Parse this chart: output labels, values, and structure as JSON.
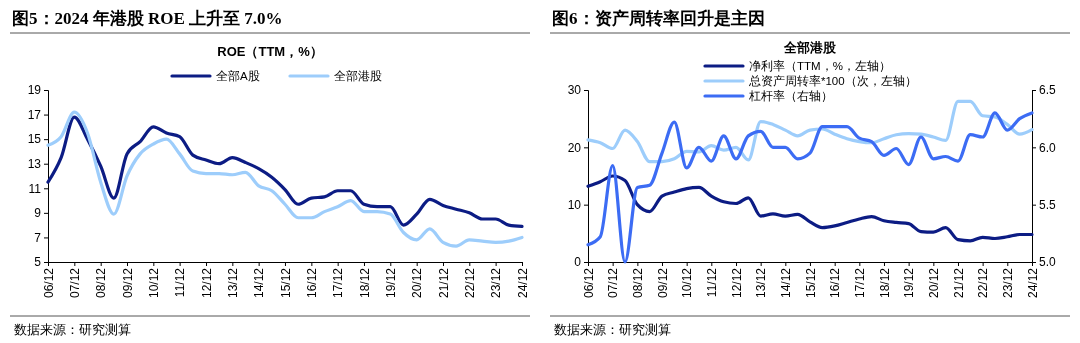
{
  "chart_data": [
    {
      "type": "line",
      "title": "图5：2024 年港股 ROE 上升至 7.0%",
      "subtitle": "ROE（TTM，%）",
      "annotations": [
        "数据来源：研究测算"
      ],
      "x": [
        "2006-12",
        "2007-06",
        "2007-12",
        "2008-06",
        "2008-12",
        "2009-06",
        "2009-12",
        "2010-06",
        "2010-12",
        "2011-06",
        "2011-12",
        "2012-06",
        "2012-12",
        "2013-06",
        "2013-12",
        "2014-06",
        "2014-12",
        "2015-06",
        "2015-12",
        "2016-06",
        "2016-12",
        "2017-06",
        "2017-12",
        "2018-06",
        "2018-12",
        "2019-06",
        "2019-12",
        "2020-06",
        "2020-12",
        "2021-06",
        "2021-12",
        "2022-06",
        "2022-12",
        "2023-06",
        "2023-12",
        "2024-06",
        "2024-12"
      ],
      "xlim": [
        "2006-12",
        "2024-12"
      ],
      "xticks": [
        {
          "value": "2006-12",
          "label": "06/12"
        },
        {
          "value": "2007-12",
          "label": "07/12"
        },
        {
          "value": "2008-12",
          "label": "08/12"
        },
        {
          "value": "2009-12",
          "label": "09/12"
        },
        {
          "value": "2010-12",
          "label": "10/12"
        },
        {
          "value": "2011-12",
          "label": "11/12"
        },
        {
          "value": "2012-12",
          "label": "12/12"
        },
        {
          "value": "2013-12",
          "label": "13/12"
        },
        {
          "value": "2014-12",
          "label": "14/12"
        },
        {
          "value": "2015-12",
          "label": "15/12"
        },
        {
          "value": "2016-12",
          "label": "16/12"
        },
        {
          "value": "2017-12",
          "label": "17/12"
        },
        {
          "value": "2018-12",
          "label": "18/12"
        },
        {
          "value": "2019-12",
          "label": "19/12"
        },
        {
          "value": "2020-12",
          "label": "20/12"
        },
        {
          "value": "2021-12",
          "label": "21/12"
        },
        {
          "value": "2022-12",
          "label": "22/12"
        },
        {
          "value": "2023-12",
          "label": "23/12"
        },
        {
          "value": "2024-12",
          "label": "24/12"
        }
      ],
      "series": [
        {
          "name": "全部A股",
          "color": "#0c1c84",
          "values": [
            11.5,
            13.5,
            16.8,
            15.0,
            12.8,
            10.2,
            13.8,
            14.8,
            16.0,
            15.5,
            15.2,
            13.7,
            13.3,
            13.0,
            13.5,
            13.1,
            12.6,
            11.9,
            10.9,
            9.7,
            10.2,
            10.3,
            10.8,
            10.8,
            9.7,
            9.5,
            9.5,
            8.0,
            8.9,
            10.1,
            9.6,
            9.3,
            9.0,
            8.5,
            8.5,
            8.0,
            7.9
          ]
        },
        {
          "name": "全部港股",
          "color": "#9dcdfb",
          "values": [
            14.5,
            15.2,
            17.2,
            15.5,
            11.5,
            8.9,
            12.0,
            13.8,
            14.6,
            15.0,
            13.8,
            12.4,
            12.2,
            12.2,
            12.1,
            12.3,
            11.2,
            10.8,
            9.7,
            8.6,
            8.6,
            9.1,
            9.5,
            10.0,
            9.1,
            9.1,
            8.9,
            7.4,
            6.8,
            7.7,
            6.6,
            6.3,
            6.8,
            6.7,
            6.6,
            6.7,
            7.0
          ]
        }
      ],
      "ylim": [
        5,
        19
      ],
      "yticks": [
        5,
        7,
        9,
        11,
        13,
        15,
        17,
        19
      ],
      "legend": "top",
      "grid": false,
      "marker": "none",
      "line_style": "solid"
    },
    {
      "type": "line",
      "title": "图6：资产周转率回升是主因",
      "subtitle": "全部港股",
      "annotations": [
        "数据来源：研究测算"
      ],
      "x": [
        "2006-12",
        "2007-06",
        "2007-12",
        "2008-06",
        "2008-12",
        "2009-06",
        "2009-12",
        "2010-06",
        "2010-12",
        "2011-06",
        "2011-12",
        "2012-06",
        "2012-12",
        "2013-06",
        "2013-12",
        "2014-06",
        "2014-12",
        "2015-06",
        "2015-12",
        "2016-06",
        "2016-12",
        "2017-06",
        "2017-12",
        "2018-06",
        "2018-12",
        "2019-06",
        "2019-12",
        "2020-06",
        "2020-12",
        "2021-06",
        "2021-12",
        "2022-06",
        "2022-12",
        "2023-06",
        "2023-12",
        "2024-06",
        "2024-12"
      ],
      "xlim": [
        "2006-12",
        "2024-12"
      ],
      "xticks": [
        {
          "value": "2006-12",
          "label": "06/12"
        },
        {
          "value": "2007-12",
          "label": "07/12"
        },
        {
          "value": "2008-12",
          "label": "08/12"
        },
        {
          "value": "2009-12",
          "label": "09/12"
        },
        {
          "value": "2010-12",
          "label": "10/12"
        },
        {
          "value": "2011-12",
          "label": "11/12"
        },
        {
          "value": "2012-12",
          "label": "12/12"
        },
        {
          "value": "2013-12",
          "label": "13/12"
        },
        {
          "value": "2014-12",
          "label": "14/12"
        },
        {
          "value": "2015-12",
          "label": "15/12"
        },
        {
          "value": "2016-12",
          "label": "16/12"
        },
        {
          "value": "2017-12",
          "label": "17/12"
        },
        {
          "value": "2018-12",
          "label": "18/12"
        },
        {
          "value": "2019-12",
          "label": "19/12"
        },
        {
          "value": "2020-12",
          "label": "20/12"
        },
        {
          "value": "2021-12",
          "label": "21/12"
        },
        {
          "value": "2022-12",
          "label": "22/12"
        },
        {
          "value": "2023-12",
          "label": "23/12"
        },
        {
          "value": "2024-12",
          "label": "24/12"
        }
      ],
      "series": [
        {
          "name": "净利率（TTM，%，左轴）",
          "color": "#0c1c84",
          "values": [
            13.2,
            14.0,
            15.0,
            14.2,
            10.0,
            8.8,
            11.5,
            12.2,
            12.8,
            13.0,
            11.5,
            10.5,
            10.2,
            11.2,
            8.0,
            8.4,
            8.0,
            8.3,
            7.0,
            6.0,
            6.3,
            6.9,
            7.5,
            7.9,
            7.2,
            6.9,
            6.7,
            5.3,
            5.2,
            6.0,
            3.9,
            3.7,
            4.3,
            4.1,
            4.4,
            4.8,
            4.8
          ]
        },
        {
          "name": "总资产周转率*100（次，左轴）",
          "color": "#9dcdfb",
          "values": [
            21.3,
            20.8,
            19.8,
            23.0,
            21.0,
            17.5,
            17.5,
            18.0,
            19.3,
            19.2,
            20.3,
            19.5,
            20.0,
            17.8,
            24.5,
            24.0,
            23.0,
            22.0,
            23.0,
            23.2,
            22.3,
            21.5,
            21.0,
            20.8,
            21.5,
            22.2,
            22.4,
            22.3,
            21.8,
            21.2,
            28.0,
            28.0,
            25.5,
            25.3,
            24.0,
            22.3,
            23.1
          ]
        },
        {
          "name": "杠杆率（右轴）",
          "color": "#3c6cf4",
          "axis": "y2",
          "values": [
            5.15,
            5.22,
            5.84,
            5.0,
            5.65,
            5.67,
            5.95,
            6.22,
            5.82,
            6.0,
            5.88,
            6.1,
            5.9,
            6.1,
            6.14,
            6.0,
            6.0,
            5.9,
            5.95,
            6.18,
            6.18,
            6.18,
            6.08,
            6.05,
            5.93,
            5.99,
            5.85,
            6.09,
            5.9,
            5.92,
            5.88,
            6.11,
            6.09,
            6.3,
            6.15,
            6.25,
            6.3
          ]
        }
      ],
      "ylim": [
        0,
        30
      ],
      "yticks": [
        0,
        10,
        20,
        30
      ],
      "y2lim": [
        5,
        6.5
      ],
      "y2ticks": [
        {
          "value": 5,
          "label": "5.0"
        },
        5.5,
        {
          "value": 6,
          "label": "6.0"
        },
        6.5
      ],
      "legend": "top",
      "grid": false,
      "marker": "none",
      "line_style": "solid"
    }
  ]
}
